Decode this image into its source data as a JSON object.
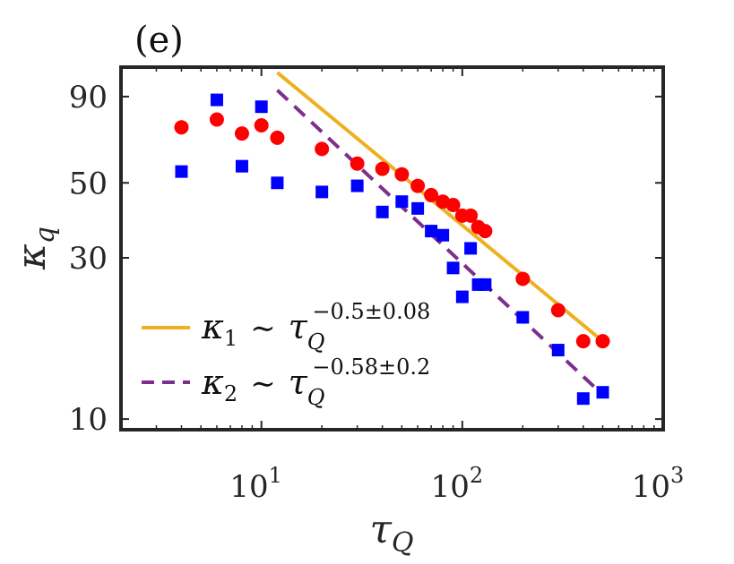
{
  "chart_data": {
    "type": "scatter",
    "panel_label": "(e)",
    "xscale": "log",
    "yscale": "log",
    "xlim": [
      2,
      1000
    ],
    "ylim": [
      9.3,
      110
    ],
    "xticks": [
      {
        "value": 10,
        "base": "10",
        "exp": "1"
      },
      {
        "value": 100,
        "base": "10",
        "exp": "2"
      },
      {
        "value": 1000,
        "base": "10",
        "exp": "3"
      }
    ],
    "yticks": [
      {
        "value": 10,
        "label": "10"
      },
      {
        "value": 30,
        "label": "30"
      },
      {
        "value": 50,
        "label": "50"
      },
      {
        "value": 90,
        "label": "90"
      }
    ],
    "xlabel": {
      "main": "τ",
      "sub": "Q"
    },
    "ylabel": {
      "main": "κ",
      "sub": "q"
    },
    "colors": {
      "circles": "#ff0000",
      "squares": "#0000ff",
      "fit1": "#edb120",
      "fit2": "#7e2f8e",
      "axis": "#262626"
    },
    "series": [
      {
        "name": "circles",
        "marker": "circle",
        "x": [
          4,
          6,
          8,
          10,
          12,
          20,
          30,
          40,
          50,
          60,
          70,
          80,
          90,
          100,
          110,
          120,
          130,
          200,
          300,
          400,
          500
        ],
        "y": [
          73,
          77,
          70,
          74,
          68,
          63,
          57,
          55,
          53,
          49,
          46,
          44,
          43,
          40,
          40,
          37,
          36,
          26,
          21,
          17,
          17
        ]
      },
      {
        "name": "squares",
        "marker": "square",
        "x": [
          4,
          6,
          8,
          10,
          12,
          20,
          30,
          40,
          50,
          60,
          70,
          80,
          90,
          100,
          110,
          120,
          130,
          200,
          300,
          400,
          500
        ],
        "y": [
          54,
          88,
          56,
          84,
          50,
          47,
          49,
          41,
          44,
          42,
          36,
          35,
          28,
          23,
          32,
          25,
          25,
          20,
          16,
          11.5,
          12
        ]
      }
    ],
    "fits": [
      {
        "name": "fit1",
        "style": "solid",
        "x": [
          12,
          500
        ],
        "y": [
          106,
          17
        ]
      },
      {
        "name": "fit2",
        "style": "dashed",
        "x": [
          12,
          500
        ],
        "y": [
          94,
          11.8
        ]
      }
    ],
    "legend": {
      "position": "bottom-left",
      "entries": [
        {
          "series": "fit1",
          "style": "solid",
          "symbol": "κ",
          "sub": "1",
          "sim": "∼",
          "var": "τ",
          "var_sub": "Q",
          "exponent": "−0.5±0.08"
        },
        {
          "series": "fit2",
          "style": "dashed",
          "symbol": "κ",
          "sub": "2",
          "sim": "∼",
          "var": "τ",
          "var_sub": "Q",
          "exponent": "−0.58±0.2"
        }
      ]
    }
  }
}
